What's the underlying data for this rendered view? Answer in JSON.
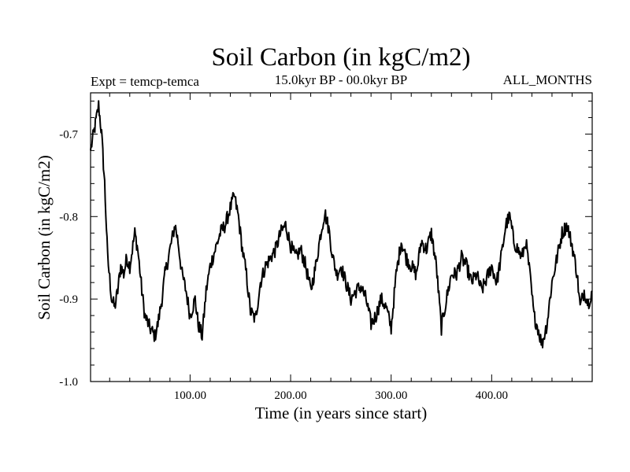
{
  "header": {
    "title": "Soil Carbon (in kgC/m2)",
    "experiment": "Expt = temcp-temca",
    "period": "15.0kyr BP - 00.0kyr BP",
    "months": "ALL_MONTHS"
  },
  "chart_data": {
    "type": "line",
    "title": "Soil Carbon (in kgC/m2)",
    "xlabel": "Time (in years since start)",
    "ylabel": "Soil Carbon (in kgC/m2)",
    "xlim": [
      1,
      500
    ],
    "ylim": [
      -1.0,
      -0.65
    ],
    "xticks": [
      100,
      200,
      300,
      400
    ],
    "xtick_labels": [
      "100.00",
      "200.00",
      "300.00",
      "400.00"
    ],
    "yticks": [
      -1.0,
      -0.9,
      -0.8,
      -0.7
    ],
    "ytick_labels": [
      "-1.0",
      "-0.9",
      "-0.8",
      "-0.7"
    ],
    "grid": false,
    "series": [
      {
        "name": "temcp-temca",
        "x": [
          1,
          4,
          7,
          9,
          12,
          15,
          18,
          22,
          25,
          28,
          31,
          34,
          37,
          40,
          45,
          48,
          52,
          55,
          60,
          65,
          68,
          72,
          75,
          80,
          85,
          88,
          92,
          96,
          100,
          105,
          108,
          112,
          116,
          120,
          125,
          130,
          135,
          140,
          144,
          148,
          152,
          156,
          160,
          165,
          170,
          175,
          180,
          185,
          190,
          195,
          200,
          205,
          210,
          215,
          220,
          225,
          230,
          234,
          238,
          242,
          246,
          250,
          255,
          260,
          265,
          270,
          275,
          280,
          285,
          290,
          295,
          300,
          305,
          310,
          315,
          320,
          325,
          330,
          335,
          340,
          345,
          350,
          355,
          360,
          365,
          370,
          375,
          380,
          385,
          390,
          395,
          400,
          405,
          410,
          414,
          418,
          422,
          426,
          430,
          434,
          438,
          442,
          446,
          450,
          455,
          460,
          465,
          470,
          475,
          480,
          485,
          488,
          492,
          496,
          500
        ],
        "values": [
          -0.72,
          -0.7,
          -0.68,
          -0.665,
          -0.7,
          -0.76,
          -0.85,
          -0.9,
          -0.91,
          -0.89,
          -0.86,
          -0.87,
          -0.85,
          -0.86,
          -0.82,
          -0.84,
          -0.89,
          -0.92,
          -0.935,
          -0.945,
          -0.93,
          -0.9,
          -0.87,
          -0.84,
          -0.81,
          -0.83,
          -0.87,
          -0.89,
          -0.92,
          -0.9,
          -0.93,
          -0.945,
          -0.89,
          -0.86,
          -0.84,
          -0.82,
          -0.81,
          -0.79,
          -0.775,
          -0.8,
          -0.84,
          -0.87,
          -0.915,
          -0.925,
          -0.88,
          -0.86,
          -0.85,
          -0.84,
          -0.82,
          -0.81,
          -0.835,
          -0.85,
          -0.84,
          -0.86,
          -0.89,
          -0.86,
          -0.82,
          -0.795,
          -0.815,
          -0.85,
          -0.87,
          -0.86,
          -0.88,
          -0.9,
          -0.89,
          -0.885,
          -0.9,
          -0.93,
          -0.92,
          -0.9,
          -0.91,
          -0.935,
          -0.87,
          -0.83,
          -0.85,
          -0.86,
          -0.87,
          -0.83,
          -0.84,
          -0.82,
          -0.86,
          -0.935,
          -0.9,
          -0.87,
          -0.87,
          -0.85,
          -0.86,
          -0.88,
          -0.87,
          -0.89,
          -0.875,
          -0.86,
          -0.88,
          -0.845,
          -0.81,
          -0.8,
          -0.83,
          -0.84,
          -0.85,
          -0.83,
          -0.87,
          -0.92,
          -0.935,
          -0.955,
          -0.93,
          -0.88,
          -0.85,
          -0.82,
          -0.81,
          -0.835,
          -0.87,
          -0.91,
          -0.89,
          -0.905,
          -0.89
        ]
      }
    ]
  }
}
